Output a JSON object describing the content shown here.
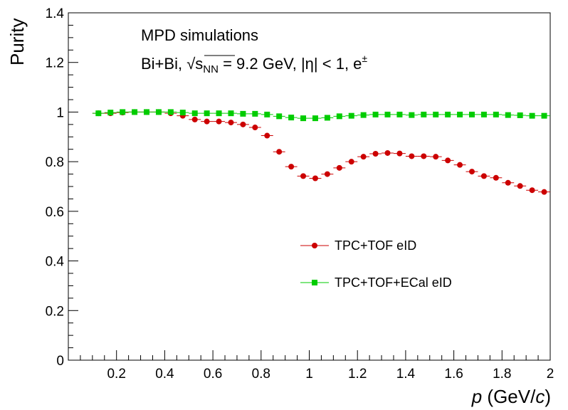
{
  "chart_data": {
    "type": "scatter",
    "title": "",
    "xlabel": "p (GeV/c)",
    "xlabel_parts": {
      "var": "p",
      "pre_unit": " (GeV/",
      "unit_var": "c",
      "post_unit": ")"
    },
    "ylabel": "Purity",
    "xlim": [
      0,
      2
    ],
    "ylim": [
      0,
      1.4
    ],
    "xticks": [
      "0.2",
      "0.4",
      "0.6",
      "0.8",
      "1",
      "1.2",
      "1.4",
      "1.6",
      "1.8",
      "2"
    ],
    "xtick_values": [
      0.2,
      0.4,
      0.6,
      0.8,
      1.0,
      1.2,
      1.4,
      1.6,
      1.8,
      2.0
    ],
    "yticks": [
      "0",
      "0.2",
      "0.4",
      "0.6",
      "0.8",
      "1",
      "1.2",
      "1.4"
    ],
    "ytick_values": [
      0,
      0.2,
      0.4,
      0.6,
      0.8,
      1.0,
      1.2,
      1.4
    ],
    "bin_half_width": 0.025,
    "annotations": {
      "line1": "MPD simulations",
      "line2_prefix": "Bi+Bi, ",
      "sqrt_s": "s",
      "sqrt_sub": "NN",
      "line2_mid": " = 9.2 GeV, |",
      "eta": "η",
      "line2_mid2": "| < 1, e",
      "line2_sup": "±"
    },
    "legend": {
      "position": "center-right",
      "entries": [
        "TPC+TOF eID",
        "TPC+TOF+ECal eID"
      ]
    },
    "series": [
      {
        "name": "TPC+TOF eID",
        "color": "#cc0000",
        "marker": "circle",
        "x": [
          0.125,
          0.175,
          0.225,
          0.275,
          0.325,
          0.375,
          0.425,
          0.475,
          0.525,
          0.575,
          0.625,
          0.675,
          0.725,
          0.775,
          0.825,
          0.875,
          0.925,
          0.975,
          1.025,
          1.075,
          1.125,
          1.175,
          1.225,
          1.275,
          1.325,
          1.375,
          1.425,
          1.475,
          1.525,
          1.575,
          1.625,
          1.675,
          1.725,
          1.775,
          1.825,
          1.875,
          1.925,
          1.975
        ],
        "values": [
          0.995,
          0.995,
          0.998,
          1.0,
          1.0,
          1.0,
          0.995,
          0.985,
          0.97,
          0.962,
          0.962,
          0.958,
          0.95,
          0.938,
          0.905,
          0.84,
          0.78,
          0.742,
          0.733,
          0.75,
          0.775,
          0.8,
          0.82,
          0.832,
          0.835,
          0.833,
          0.822,
          0.822,
          0.82,
          0.805,
          0.787,
          0.76,
          0.742,
          0.735,
          0.715,
          0.702,
          0.685,
          0.678
        ]
      },
      {
        "name": "TPC+TOF+ECal eID",
        "color": "#00cc00",
        "marker": "square",
        "x": [
          0.125,
          0.175,
          0.225,
          0.275,
          0.325,
          0.375,
          0.425,
          0.475,
          0.525,
          0.575,
          0.625,
          0.675,
          0.725,
          0.775,
          0.825,
          0.875,
          0.925,
          0.975,
          1.025,
          1.075,
          1.125,
          1.175,
          1.225,
          1.275,
          1.325,
          1.375,
          1.425,
          1.475,
          1.525,
          1.575,
          1.625,
          1.675,
          1.725,
          1.775,
          1.825,
          1.875,
          1.925,
          1.975
        ],
        "values": [
          0.995,
          0.998,
          1.0,
          1.0,
          1.0,
          1.0,
          1.0,
          0.998,
          0.995,
          0.995,
          0.995,
          0.995,
          0.993,
          0.993,
          0.99,
          0.983,
          0.978,
          0.975,
          0.975,
          0.977,
          0.983,
          0.985,
          0.988,
          0.99,
          0.99,
          0.99,
          0.988,
          0.99,
          0.99,
          0.99,
          0.99,
          0.99,
          0.99,
          0.99,
          0.988,
          0.987,
          0.985,
          0.985
        ]
      }
    ]
  }
}
